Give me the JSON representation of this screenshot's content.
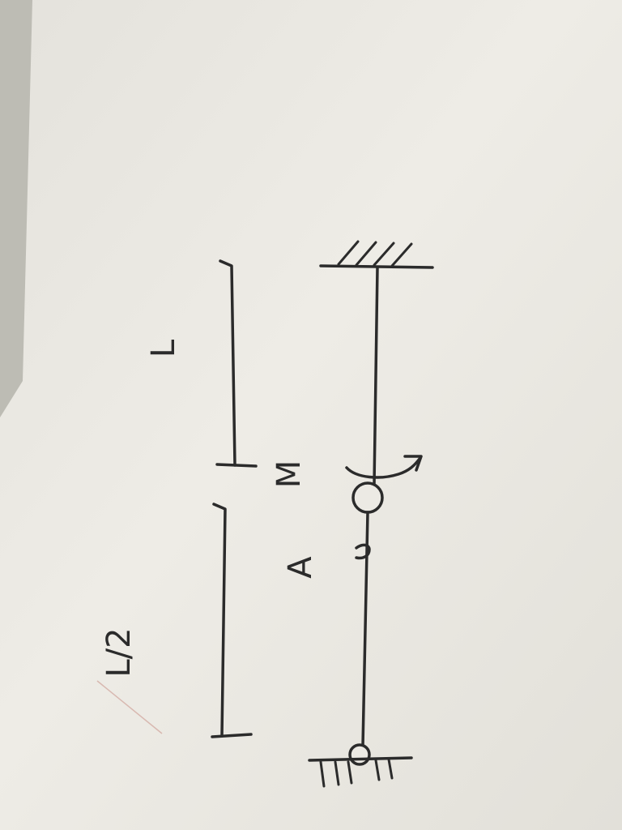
{
  "labels": {
    "upper_length": "L",
    "moment": "M",
    "point": "A",
    "lower_length": "L/2"
  },
  "colors": {
    "paper": "#eceae4",
    "ink": "#2b2b2b",
    "background": "#b9b8b0"
  }
}
